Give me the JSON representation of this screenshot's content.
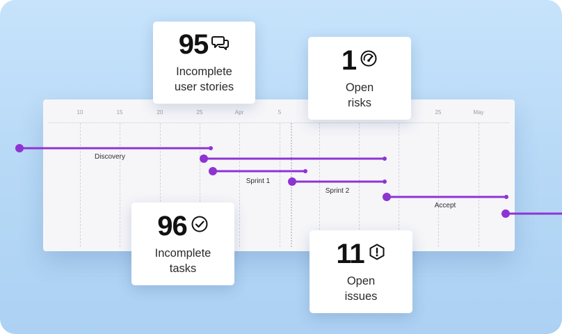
{
  "timeline": {
    "ticks": [
      "10",
      "15",
      "20",
      "25",
      "Apr",
      "5",
      "25",
      "May"
    ],
    "bars": [
      {
        "label": "Discovery"
      },
      {
        "label": ""
      },
      {
        "label": "Sprint 1"
      },
      {
        "label": "Sprint 2"
      },
      {
        "label": "Accept"
      },
      {
        "label": ""
      }
    ],
    "bar_color": "#8e34d2"
  },
  "cards": {
    "user_stories": {
      "value": "95",
      "line1": "Incomplete",
      "line2": "user stories",
      "icon": "chat-bubbles-icon"
    },
    "risks": {
      "value": "1",
      "line1": "Open",
      "line2": "risks",
      "icon": "gauge-icon"
    },
    "tasks": {
      "value": "96",
      "line1": "Incomplete",
      "line2": "tasks",
      "icon": "check-circle-icon"
    },
    "issues": {
      "value": "11",
      "line1": "Open",
      "line2": "issues",
      "icon": "alert-hexagon-icon"
    }
  }
}
